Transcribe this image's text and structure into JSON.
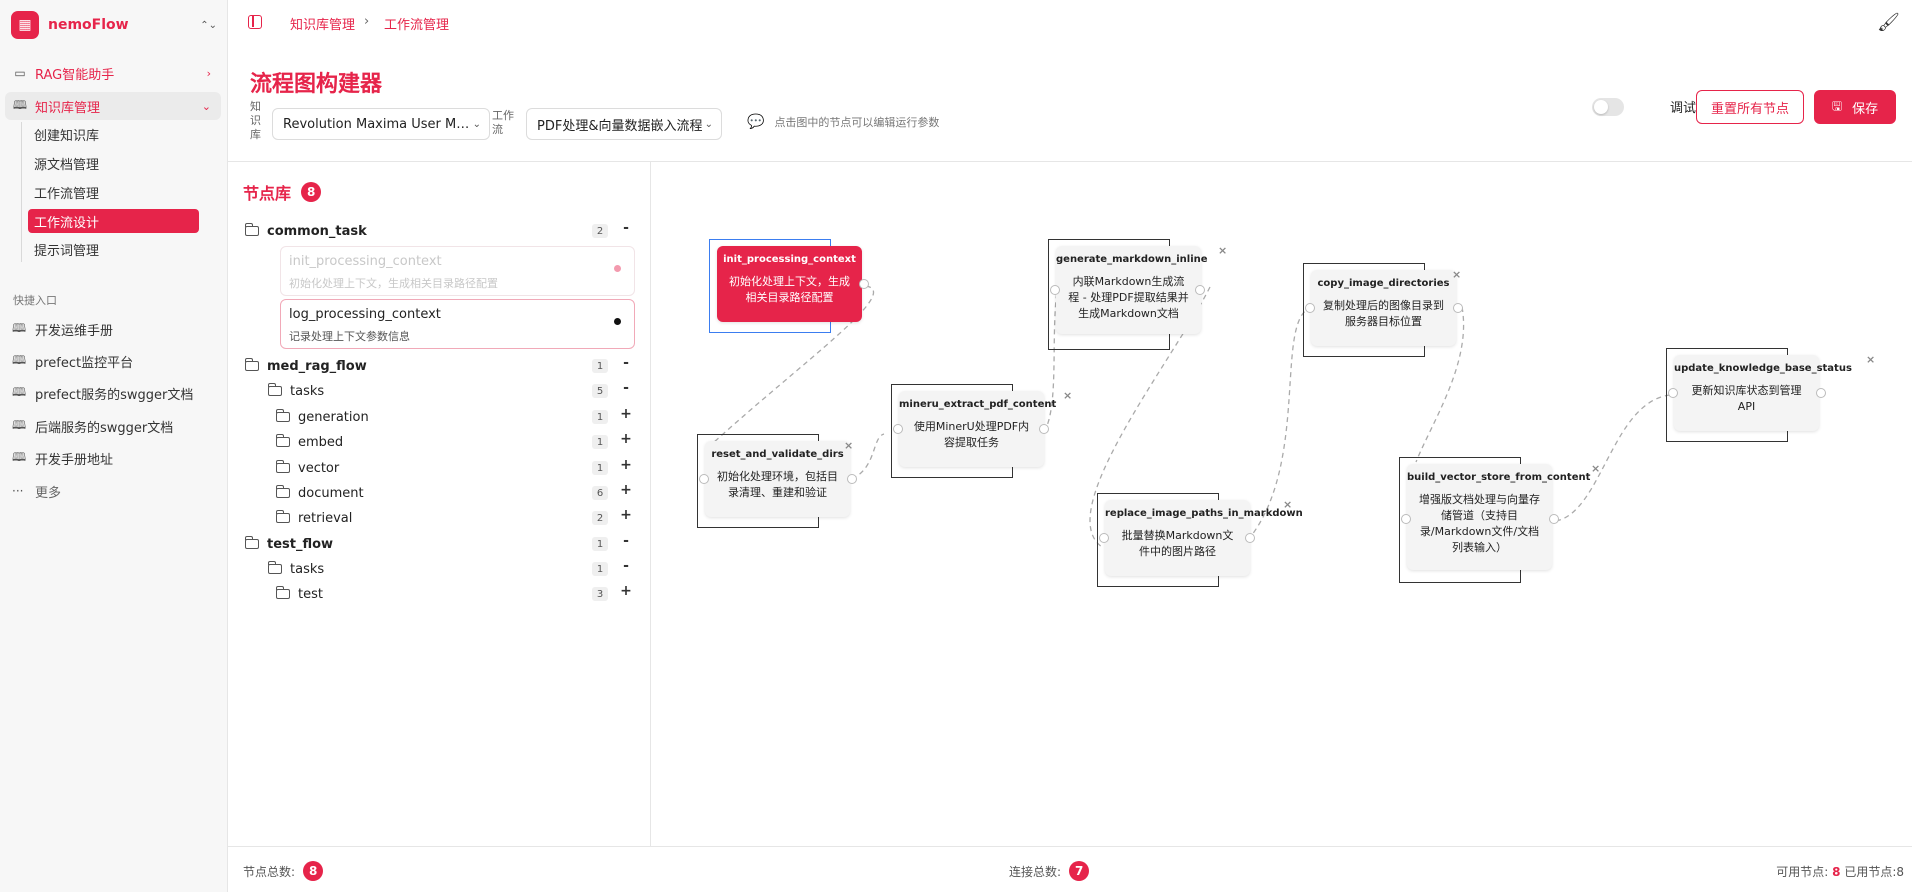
{
  "app": {
    "name": "nemoFlow"
  },
  "sidebar": {
    "items": [
      {
        "label": "RAG智能助手"
      },
      {
        "label": "知识库管理"
      }
    ],
    "subitems": [
      {
        "label": "创建知识库"
      },
      {
        "label": "源文档管理"
      },
      {
        "label": "工作流管理"
      },
      {
        "label": "工作流设计"
      },
      {
        "label": "提示词管理"
      }
    ],
    "quick_title": "快捷入口",
    "quick": [
      {
        "label": "开发运维手册"
      },
      {
        "label": "prefect监控平台"
      },
      {
        "label": "prefect服务的swgger文档"
      },
      {
        "label": "后端服务的swgger文档"
      },
      {
        "label": "开发手册地址"
      },
      {
        "label": "更多"
      }
    ]
  },
  "breadcrumb": [
    "知识库管理",
    "工作流管理"
  ],
  "header": {
    "title": "流程图构建器",
    "kb_label": "知识库",
    "kb_value": "Revolution Maxima User Man...",
    "wf_label": "工作流",
    "wf_value": "PDF处理&向量数据嵌入流程",
    "hint": "点击图中的节点可以编辑运行参数",
    "debug_label": "调试模式",
    "reset_label": "重置所有节点",
    "save_label": "保存"
  },
  "library": {
    "title": "节点库",
    "count": "8",
    "tree": [
      {
        "label": "common_task",
        "count": "2",
        "toggle": "-"
      },
      {
        "label": "med_rag_flow",
        "count": "1",
        "toggle": "-"
      },
      {
        "label": "tasks",
        "count": "5",
        "toggle": "-"
      },
      {
        "label": "generation",
        "count": "1",
        "toggle": "+"
      },
      {
        "label": "embed",
        "count": "1",
        "toggle": "+"
      },
      {
        "label": "vector",
        "count": "1",
        "toggle": "+"
      },
      {
        "label": "document",
        "count": "6",
        "toggle": "+"
      },
      {
        "label": "retrieval",
        "count": "2",
        "toggle": "+"
      },
      {
        "label": "test_flow",
        "count": "1",
        "toggle": "-"
      },
      {
        "label": "tasks",
        "count": "1",
        "toggle": "-"
      },
      {
        "label": "test",
        "count": "3",
        "toggle": "+"
      }
    ],
    "cards": [
      {
        "name": "init_processing_context",
        "desc": "初始化处理上下文，生成相关目录路径配置"
      },
      {
        "name": "log_processing_context",
        "desc": "记录处理上下文参数信息"
      }
    ]
  },
  "flow_nodes": [
    {
      "name": "init_processing_context",
      "desc": "初始化处理上下文，生成相关目录路径配置"
    },
    {
      "name": "reset_and_validate_dirs",
      "desc": "初始化处理环境，包括目录清理、重建和验证"
    },
    {
      "name": "mineru_extract_pdf_content",
      "desc": "使用MinerU处理PDF内容提取任务"
    },
    {
      "name": "generate_markdown_inline",
      "desc": "内联Markdown生成流程 - 处理PDF提取结果并生成Markdown文档"
    },
    {
      "name": "replace_image_paths_in_markdown",
      "desc": "批量替换Markdown文件中的图片路径"
    },
    {
      "name": "copy_image_directories",
      "desc": "复制处理后的图像目录到服务器目标位置"
    },
    {
      "name": "build_vector_store_from_content",
      "desc": "增强版文档处理与向量存储管道（支持目录/Markdown文件/文档列表输入）"
    },
    {
      "name": "update_knowledge_base_status",
      "desc": "更新知识库状态到管理API"
    }
  ],
  "footer": {
    "nodes_label": "节点总数:",
    "nodes_count": "8",
    "edges_label": "连接总数:",
    "edges_count": "7",
    "avail_label": "可用节点:",
    "avail_count": "8",
    "used_label": "已用节点:",
    "used_count": "8"
  },
  "colors": {
    "accent": "#e6244a",
    "selection": "#3b7df0"
  }
}
